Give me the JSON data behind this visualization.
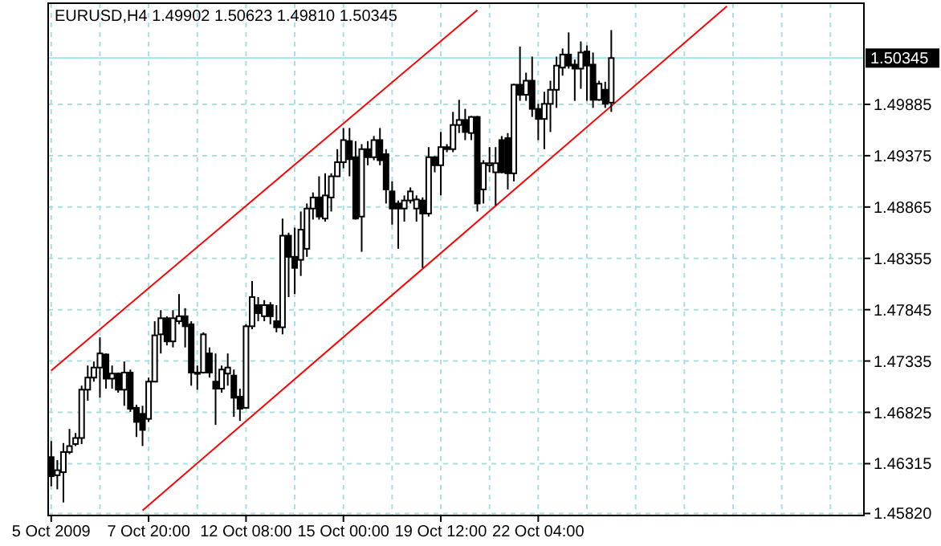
{
  "chart_data": {
    "type": "candlestick",
    "title": "EURUSD,H4 1.49902 1.50623 1.49810 1.50345",
    "categories": [
      "5 Oct 2009",
      null,
      null,
      null,
      null,
      null,
      null,
      null,
      null,
      null,
      null,
      null,
      null,
      null,
      null,
      null,
      "7 Oct 20:00",
      null,
      null,
      null,
      null,
      null,
      null,
      null,
      null,
      null,
      null,
      null,
      null,
      null,
      null,
      null,
      "12 Oct 08:00",
      null,
      null,
      null,
      null,
      null,
      null,
      null,
      null,
      null,
      null,
      null,
      null,
      null,
      null,
      null,
      "15 Oct 00:00",
      null,
      null,
      null,
      null,
      null,
      null,
      null,
      null,
      null,
      null,
      null,
      null,
      null,
      null,
      null,
      "19 Oct 12:00",
      null,
      null,
      null,
      null,
      null,
      null,
      null,
      null,
      null,
      null,
      null,
      null,
      null,
      null,
      null,
      "22 Oct 04:00",
      null,
      null,
      null,
      null,
      null,
      null,
      null,
      null,
      null,
      null,
      null,
      null,
      null,
      null,
      null,
      null,
      null,
      null,
      null,
      null,
      null,
      null,
      null,
      null,
      null,
      null,
      null,
      null,
      null,
      null,
      null,
      null,
      null,
      null,
      null,
      null,
      null,
      null,
      null,
      null,
      null,
      null,
      null,
      null,
      null,
      null,
      null,
      null,
      null,
      null,
      null,
      null,
      null
    ],
    "ohlc": [
      [
        1.4638,
        1.4654,
        1.4609,
        1.4619
      ],
      [
        1.462,
        1.4635,
        1.4606,
        1.4625
      ],
      [
        1.4623,
        1.4652,
        1.4593,
        1.4643
      ],
      [
        1.4643,
        1.4666,
        1.4641,
        1.4649
      ],
      [
        1.4651,
        1.4662,
        1.4649,
        1.4657
      ],
      [
        1.4657,
        1.4709,
        1.4651,
        1.4705
      ],
      [
        1.4705,
        1.4729,
        1.4694,
        1.4717
      ],
      [
        1.4717,
        1.4733,
        1.4713,
        1.4727
      ],
      [
        1.4727,
        1.4757,
        1.4697,
        1.4741
      ],
      [
        1.474,
        1.4741,
        1.4706,
        1.4716
      ],
      [
        1.4716,
        1.4729,
        1.4706,
        1.4721
      ],
      [
        1.4721,
        1.4722,
        1.4702,
        1.4705
      ],
      [
        1.4705,
        1.4733,
        1.4689,
        1.4722
      ],
      [
        1.4722,
        1.4725,
        1.4683,
        1.4686
      ],
      [
        1.4687,
        1.469,
        1.4658,
        1.4673
      ],
      [
        1.4681,
        1.4689,
        1.4649,
        1.4665
      ],
      [
        1.4676,
        1.4717,
        1.4673,
        1.4713
      ],
      [
        1.4713,
        1.4773,
        1.4713,
        1.4759
      ],
      [
        1.476,
        1.4784,
        1.4741,
        1.4776
      ],
      [
        1.4776,
        1.4778,
        1.4749,
        1.4753
      ],
      [
        1.4753,
        1.4784,
        1.4747,
        1.4776
      ],
      [
        1.4773,
        1.48,
        1.477,
        1.4778
      ],
      [
        1.4778,
        1.4786,
        1.4747,
        1.4768
      ],
      [
        1.477,
        1.4773,
        1.4709,
        1.4722
      ],
      [
        1.4722,
        1.4729,
        1.4705,
        1.4721
      ],
      [
        1.4722,
        1.4762,
        1.4721,
        1.476
      ],
      [
        1.4741,
        1.4747,
        1.4717,
        1.4722
      ],
      [
        1.4713,
        1.4741,
        1.467,
        1.4706
      ],
      [
        1.4706,
        1.4729,
        1.4702,
        1.4725
      ],
      [
        1.4721,
        1.4741,
        1.4709,
        1.4727
      ],
      [
        1.4719,
        1.4725,
        1.4678,
        1.4697
      ],
      [
        1.4698,
        1.4706,
        1.4674,
        1.4686
      ],
      [
        1.4687,
        1.477,
        1.4686,
        1.4768
      ],
      [
        1.4768,
        1.4813,
        1.4765,
        1.4797
      ],
      [
        1.4789,
        1.4797,
        1.4773,
        1.4781
      ],
      [
        1.4778,
        1.4794,
        1.4773,
        1.4789
      ],
      [
        1.4789,
        1.4792,
        1.477,
        1.4778
      ],
      [
        1.4773,
        1.4789,
        1.4762,
        1.4767
      ],
      [
        1.4767,
        1.4875,
        1.476,
        1.4858
      ],
      [
        1.4858,
        1.4861,
        1.4797,
        1.4837
      ],
      [
        1.4837,
        1.4866,
        1.48,
        1.4826
      ],
      [
        1.4834,
        1.4882,
        1.4818,
        1.4864
      ],
      [
        1.4845,
        1.489,
        1.4837,
        1.4885
      ],
      [
        1.4885,
        1.4901,
        1.4874,
        1.4896
      ],
      [
        1.4896,
        1.4917,
        1.4874,
        1.4877
      ],
      [
        1.4875,
        1.492,
        1.4872,
        1.4898
      ],
      [
        1.4896,
        1.492,
        1.4882,
        1.4917
      ],
      [
        1.4917,
        1.4944,
        1.4917,
        1.4931
      ],
      [
        1.4931,
        1.4965,
        1.4925,
        1.4953
      ],
      [
        1.4952,
        1.4965,
        1.4917,
        1.4934
      ],
      [
        1.4936,
        1.4952,
        1.4874,
        1.4875
      ],
      [
        1.4877,
        1.4949,
        1.4842,
        1.4944
      ],
      [
        1.4944,
        1.4952,
        1.4928,
        1.4936
      ],
      [
        1.4936,
        1.4957,
        1.4933,
        1.4953
      ],
      [
        1.4953,
        1.4965,
        1.4928,
        1.4933
      ],
      [
        1.4939,
        1.4944,
        1.489,
        1.4904
      ],
      [
        1.4902,
        1.4912,
        1.4869,
        1.4885
      ],
      [
        1.489,
        1.4893,
        1.4845,
        1.4885
      ],
      [
        1.4885,
        1.4898,
        1.4872,
        1.4893
      ],
      [
        1.4893,
        1.4906,
        1.489,
        1.4902
      ],
      [
        1.4885,
        1.4898,
        1.4872,
        1.4894
      ],
      [
        1.4893,
        1.4896,
        1.4826,
        1.488
      ],
      [
        1.488,
        1.4946,
        1.4877,
        1.4936
      ],
      [
        1.4936,
        1.4937,
        1.4921,
        1.4928
      ],
      [
        1.4928,
        1.4961,
        1.4898,
        1.4946
      ],
      [
        1.4946,
        1.4949,
        1.4941,
        1.4944
      ],
      [
        1.4944,
        1.4981,
        1.4941,
        1.4968
      ],
      [
        1.4968,
        1.4993,
        1.496,
        1.4973
      ],
      [
        1.4973,
        1.4984,
        1.4953,
        1.4961
      ],
      [
        1.496,
        1.4977,
        1.4953,
        1.4976
      ],
      [
        1.4976,
        1.4977,
        1.4882,
        1.489
      ],
      [
        1.4904,
        1.4933,
        1.489,
        1.493
      ],
      [
        1.4928,
        1.4946,
        1.4921,
        1.493
      ],
      [
        1.4921,
        1.4946,
        1.4888,
        1.493
      ],
      [
        1.4953,
        1.4957,
        1.492,
        1.4921
      ],
      [
        1.4955,
        1.496,
        1.4904,
        1.492
      ],
      [
        1.492,
        1.5009,
        1.4912,
        1.5008
      ],
      [
        1.5008,
        1.5046,
        1.4992,
        1.4998
      ],
      [
        1.4998,
        1.502,
        1.4992,
        1.5012
      ],
      [
        1.5012,
        1.5036,
        1.4976,
        1.4984
      ],
      [
        1.4984,
        1.4989,
        1.4953,
        1.4974
      ],
      [
        1.4974,
        1.5001,
        1.4944,
        1.4989
      ],
      [
        1.4989,
        1.5012,
        1.4961,
        1.5003
      ],
      [
        1.5003,
        1.5036,
        1.4985,
        1.5027
      ],
      [
        1.5025,
        1.5044,
        1.5017,
        1.5038
      ],
      [
        1.5038,
        1.506,
        1.5024,
        1.5027
      ],
      [
        1.5028,
        1.5033,
        1.4992,
        1.5024
      ],
      [
        1.5024,
        1.5051,
        1.5004,
        1.504
      ],
      [
        1.5041,
        1.5047,
        1.4992,
        1.5027
      ],
      [
        1.5028,
        1.504,
        1.4985,
        1.4993
      ],
      [
        1.4993,
        1.5012,
        1.4992,
        1.5009
      ],
      [
        1.5003,
        1.5011,
        1.4985,
        1.4989
      ],
      [
        1.49902,
        1.50623,
        1.4981,
        1.50345
      ],
      null,
      null,
      null,
      null,
      null,
      null,
      null,
      null,
      null,
      null,
      null,
      null,
      null,
      null,
      null,
      null,
      null,
      null,
      null,
      null,
      null,
      null,
      null,
      null,
      null,
      null,
      null,
      null,
      null,
      null,
      null,
      null,
      null,
      null,
      null,
      null,
      null,
      null,
      null,
      null,
      null
    ],
    "series": [
      {
        "type": "line",
        "color": "#ff0000",
        "values": [
          1.4724,
          null,
          null,
          null,
          null,
          null,
          null,
          null,
          null,
          null,
          null,
          null,
          null,
          null,
          null,
          null,
          null,
          null,
          null,
          null,
          null,
          null,
          null,
          null,
          null,
          null,
          null,
          null,
          null,
          null,
          null,
          null,
          null,
          null,
          null,
          null,
          null,
          null,
          null,
          null,
          null,
          null,
          null,
          null,
          null,
          null,
          null,
          null,
          null,
          null,
          null,
          null,
          null,
          null,
          null,
          null,
          null,
          null,
          null,
          null,
          null,
          null,
          null,
          null,
          null,
          null,
          null,
          null,
          null,
          null,
          1.5082,
          null,
          null,
          null,
          null,
          null,
          null,
          null,
          null,
          null,
          null,
          null,
          null,
          null,
          null,
          null,
          null,
          null,
          null,
          null,
          null,
          null,
          null,
          null,
          null,
          null,
          null,
          null,
          null,
          null,
          null,
          null,
          null,
          null,
          null,
          null,
          null,
          null,
          null,
          null,
          null,
          null,
          null,
          null,
          null,
          null,
          null,
          null,
          null,
          null,
          null,
          null,
          null,
          null,
          null,
          null,
          null,
          null,
          null,
          null,
          null,
          null,
          null,
          null
        ]
      },
      {
        "type": "line",
        "color": "#ff0000",
        "values": [
          null,
          null,
          null,
          null,
          null,
          null,
          null,
          null,
          null,
          null,
          null,
          null,
          null,
          null,
          null,
          1.4585,
          null,
          null,
          null,
          null,
          null,
          null,
          null,
          null,
          null,
          null,
          null,
          null,
          null,
          null,
          null,
          null,
          null,
          null,
          null,
          null,
          null,
          null,
          null,
          null,
          null,
          null,
          null,
          null,
          null,
          null,
          null,
          null,
          null,
          null,
          null,
          null,
          null,
          null,
          null,
          null,
          null,
          null,
          null,
          null,
          null,
          null,
          null,
          null,
          null,
          null,
          null,
          null,
          null,
          null,
          null,
          null,
          null,
          null,
          null,
          null,
          null,
          null,
          null,
          null,
          null,
          null,
          null,
          null,
          null,
          null,
          null,
          null,
          null,
          null,
          null,
          null,
          null,
          null,
          null,
          null,
          null,
          null,
          null,
          null,
          null,
          null,
          null,
          null,
          null,
          null,
          null,
          null,
          null,
          null,
          null,
          1.5086,
          null,
          null,
          null,
          null,
          null,
          null,
          null,
          null,
          null,
          null,
          null,
          null,
          null,
          null,
          null,
          null,
          null,
          null,
          null,
          null,
          null,
          null
        ]
      }
    ],
    "ylim": [
      1.458,
      1.5089
    ],
    "yticks": [
      {
        "value": 1.4582,
        "label": "1.45820"
      },
      1.46315,
      1.46825,
      1.47335,
      1.47845,
      1.48355,
      1.48865,
      1.49375,
      1.49885
    ],
    "ref_lines": [
      {
        "axis": "y",
        "value": 1.50345,
        "label": "1.50345",
        "color": "#9ee6e6"
      }
    ],
    "grid": true
  }
}
